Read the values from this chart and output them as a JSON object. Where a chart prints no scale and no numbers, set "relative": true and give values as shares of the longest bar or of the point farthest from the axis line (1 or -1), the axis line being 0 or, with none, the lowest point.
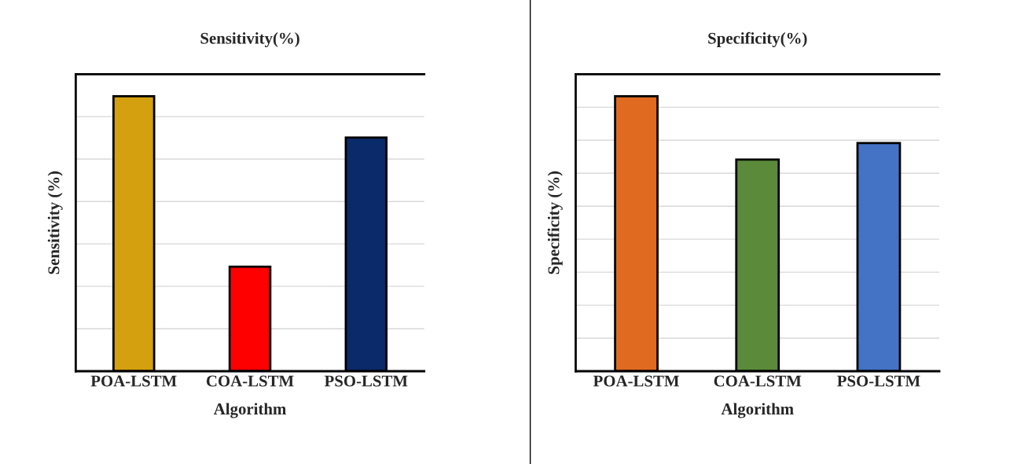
{
  "chart_data": [
    {
      "type": "bar",
      "title": "Sensitivity(%)",
      "xlabel": "Algorithm",
      "ylabel": "Sensitivity (%)",
      "categories": [
        "POA-LSTM",
        "COA-LSTM",
        "PSO-LSTM"
      ],
      "values": [
        1,
        0.38,
        0.85
      ],
      "colors": [
        "#d4a010",
        "#ff0000",
        "#0a2a6a"
      ],
      "relative": true,
      "grid": "y"
    },
    {
      "type": "bar",
      "title": "Specificity(%)",
      "xlabel": "Algorithm",
      "ylabel": "Specificity (%)",
      "categories": [
        "POA-LSTM",
        "COA-LSTM",
        "PSO-LSTM"
      ],
      "values": [
        1,
        0.77,
        0.83
      ],
      "colors": [
        "#e06a20",
        "#5a8a3a",
        "#4472c4"
      ],
      "relative": true,
      "grid": "y"
    }
  ]
}
